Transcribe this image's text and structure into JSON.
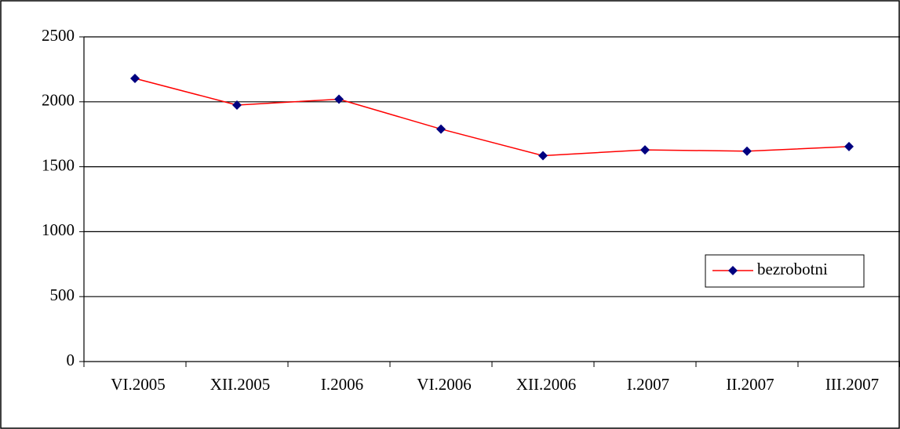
{
  "chart_data": {
    "type": "line",
    "categories": [
      "VI.2005",
      "XII.2005",
      "I.2006",
      "VI.2006",
      "XII.2006",
      "I.2007",
      "II.2007",
      "III.2007"
    ],
    "series": [
      {
        "name": "bezrobotni",
        "color": "#ff0000",
        "marker_color": "#000080",
        "values": [
          2180,
          1975,
          2020,
          1790,
          1585,
          1630,
          1620,
          1655
        ]
      }
    ],
    "ylim": [
      0,
      2500
    ],
    "yticks": [
      0,
      500,
      1000,
      1500,
      2000,
      2500
    ],
    "grid": true,
    "legend": "right"
  }
}
